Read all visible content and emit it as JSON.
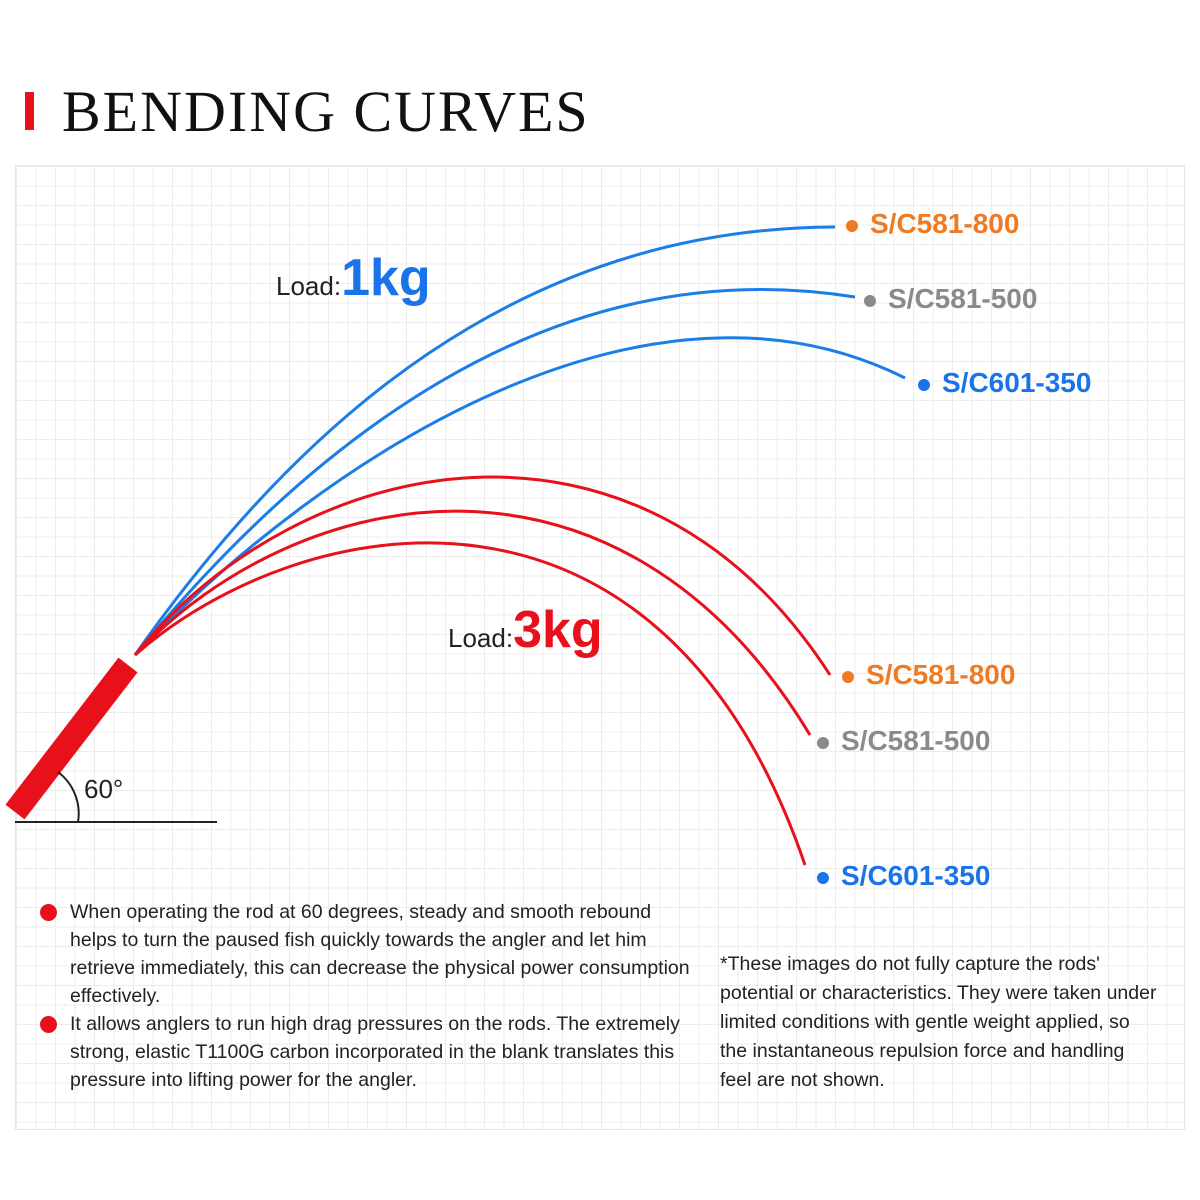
{
  "header": {
    "title": "BENDING CURVES"
  },
  "groups": [
    {
      "load_label": "Load:",
      "load": "1kg",
      "rods": [
        "S/C581-800",
        "S/C581-500",
        "S/C601-350"
      ]
    },
    {
      "load_label": "Load:",
      "load": "3kg",
      "rods": [
        "S/C581-800",
        "S/C581-500",
        "S/C601-350"
      ]
    }
  ],
  "angle": "60°",
  "notes": [
    "When operating the rod at 60 degrees, steady and smooth rebound helps to turn the paused fish quickly towards the angler and let him retrieve immediately, this can decrease the physical power consumption effectively.",
    "It allows anglers to run high drag pressures on the rods. The extremely strong, elastic T1100G carbon incorporated in the blank translates this pressure into lifting power for the angler."
  ],
  "disclaimer": "*These images do not fully capture the rods' potential or characteristics. They were taken under limited conditions with gentle weight applied, so the instantaneous repulsion force and handling feel are not shown."
}
